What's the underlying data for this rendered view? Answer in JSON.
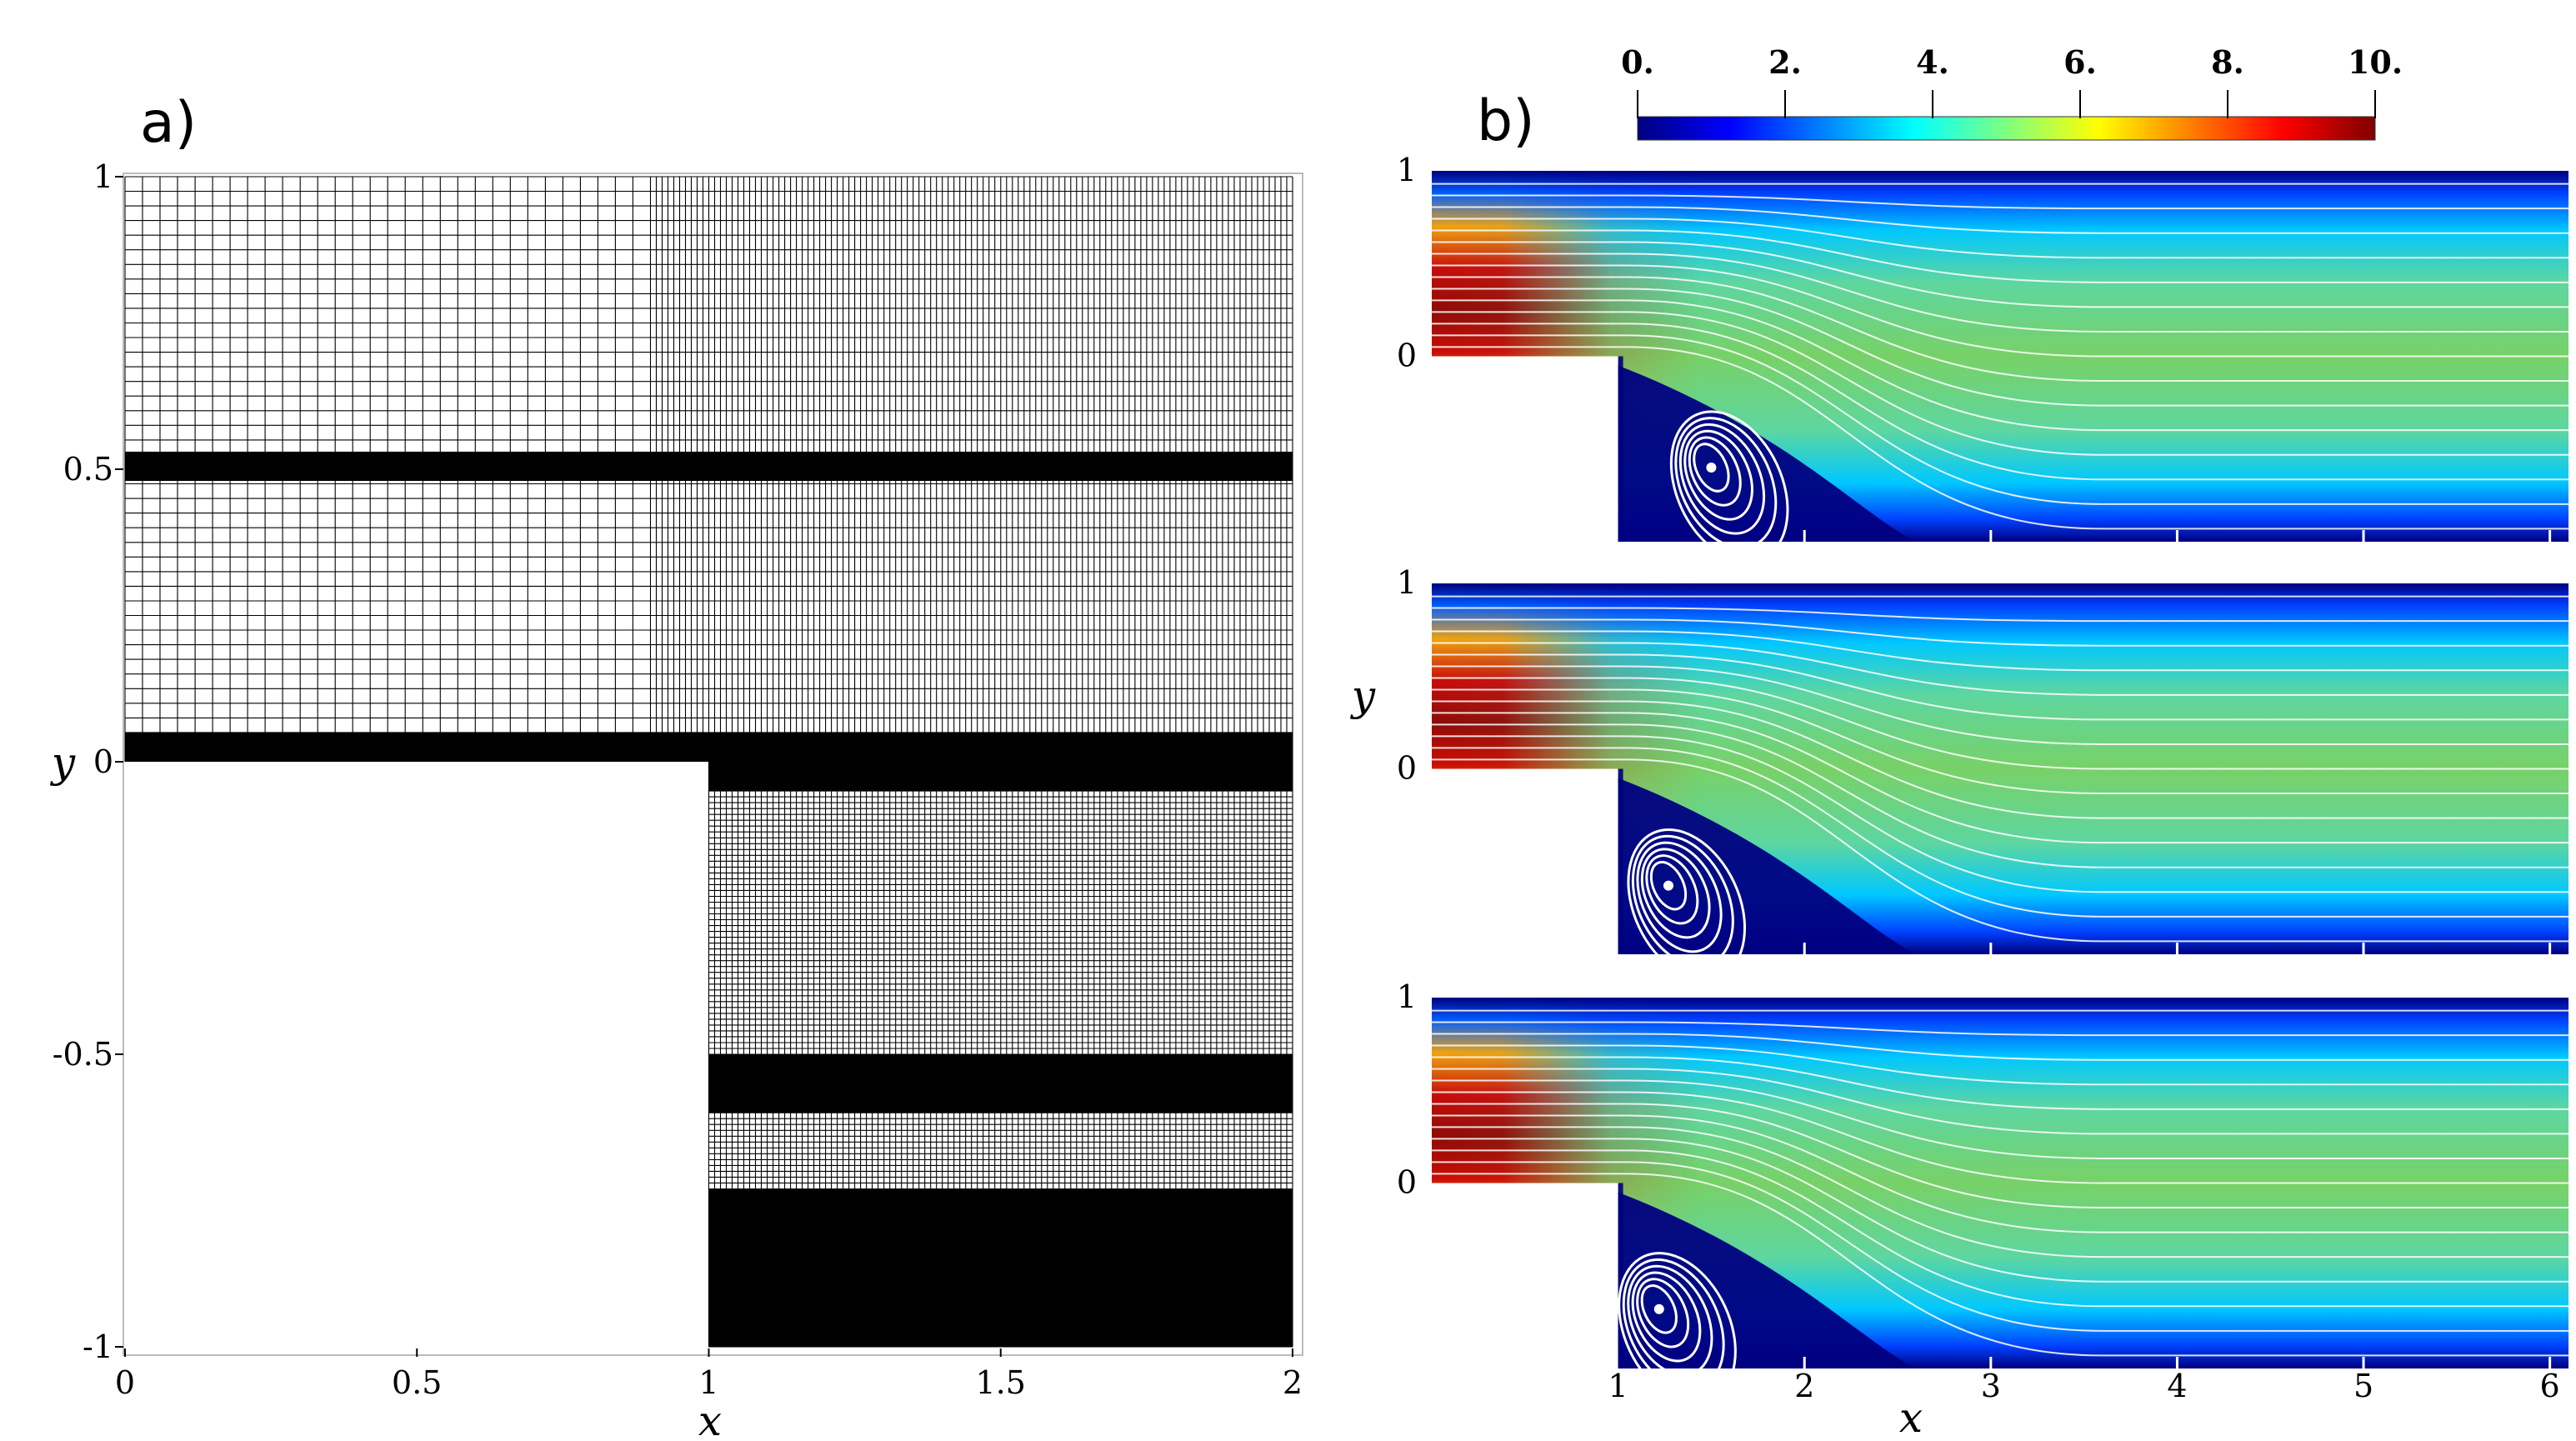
{
  "panel_a": {
    "label": "a)",
    "xlabel": "x",
    "ylabel": "y",
    "x_ticks": [
      "0",
      "0.5",
      "1",
      "1.5",
      "2"
    ],
    "y_ticks": [
      "1",
      "0.5",
      "0",
      "-0.5",
      "-1"
    ],
    "xlim": [
      0,
      2
    ],
    "ylim": [
      -1,
      1
    ],
    "step_x": 1,
    "mesh_refinement_x": 0.9,
    "dense_bands_y": [
      [
        0.48,
        0.53
      ],
      [
        -0.05,
        0.05
      ],
      [
        -0.6,
        -0.5
      ],
      [
        -1.0,
        -0.73
      ]
    ],
    "grid_on": true
  },
  "panel_b": {
    "label": "b)",
    "xlabel": "x",
    "ylabel": "y",
    "x_ticks": [
      "1",
      "2",
      "3",
      "4",
      "5",
      "6"
    ],
    "y_ticks": [
      "1",
      "0"
    ],
    "xlim": [
      0,
      6.1
    ],
    "ylim": [
      -1,
      1
    ],
    "step_x": 1,
    "colorbar": {
      "ticks": [
        "0.",
        "2.",
        "4.",
        "6.",
        "8.",
        "10."
      ],
      "range": [
        0,
        10
      ],
      "colormap": "jet"
    },
    "subplot_count": 3,
    "vortex_centers_x": [
      1.5,
      1.27,
      1.22
    ],
    "vortex_centers_y": [
      -0.6,
      -0.63,
      -0.68
    ],
    "colors": {
      "low": "#00007f",
      "mid": "#78d167",
      "high": "#7f0000",
      "streamline": "#ffffff"
    }
  }
}
